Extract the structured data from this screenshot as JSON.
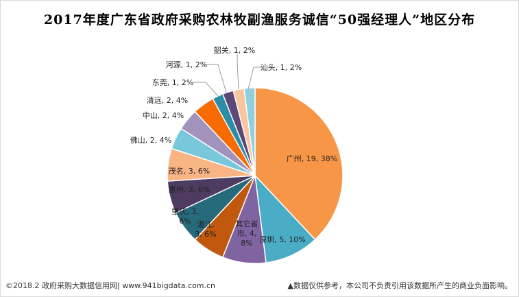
{
  "chart_data": {
    "type": "pie",
    "title": "2017年度广东省政府采购农林牧副渔服务诚信“50强经理人”地区分布",
    "start_angle_deg": 0,
    "direction": "clockwise",
    "slices": [
      {
        "name": "广州",
        "value": 19,
        "percent": "38%",
        "color": "#F79646",
        "label": "广州, 19, 38%"
      },
      {
        "name": "深圳",
        "value": 5,
        "percent": "10%",
        "color": "#4BACC6",
        "label": "深圳, 5, 10%"
      },
      {
        "name": "其它省市",
        "value": 4,
        "percent": "8%",
        "color": "#8064A2",
        "label_lines": [
          "其它省",
          "市, 4,",
          "8%"
        ]
      },
      {
        "name": "湛江",
        "value": 3,
        "percent": "6%",
        "color": "#C0590E",
        "label_lines": [
          "湛江,",
          "3, 6%"
        ]
      },
      {
        "name": "肇庆",
        "value": 3,
        "percent": "6%",
        "color": "#276A7C",
        "label_lines": [
          "肇庆, 3,",
          "6%"
        ]
      },
      {
        "name": "惠州",
        "value": 3,
        "percent": "6%",
        "color": "#4D3B62",
        "label": "惠州, 3, 6%"
      },
      {
        "name": "茂名",
        "value": 3,
        "percent": "6%",
        "color": "#F9B484",
        "label": "茂名, 3, 6%"
      },
      {
        "name": "佛山",
        "value": 2,
        "percent": "4%",
        "color": "#78C7DA",
        "label": "佛山, 2, 4%"
      },
      {
        "name": "中山",
        "value": 2,
        "percent": "4%",
        "color": "#A393BC",
        "label": "中山, 2, 4%"
      },
      {
        "name": "清远",
        "value": 2,
        "percent": "4%",
        "color": "#F66C00",
        "label": "清远, 2, 4%"
      },
      {
        "name": "东莞",
        "value": 1,
        "percent": "2%",
        "color": "#2E8DA6",
        "label": "东莞, 1, 2%"
      },
      {
        "name": "河源",
        "value": 1,
        "percent": "2%",
        "color": "#5D4778",
        "label": "河源, 1, 2%"
      },
      {
        "name": "韶关",
        "value": 1,
        "percent": "2%",
        "color": "#F9C4A0",
        "label": "韶关, 1, 2%"
      },
      {
        "name": "汕头",
        "value": 1,
        "percent": "2%",
        "color": "#8FD0E0",
        "label": "汕头, 1, 2%"
      }
    ]
  },
  "footer": {
    "left": "©2018.2 政府采购大数据信用网| www.941bigdata.com.cn",
    "right": "▲数据仅供参考，本公司不负责引用该数据所产生的商业负面影响。"
  }
}
